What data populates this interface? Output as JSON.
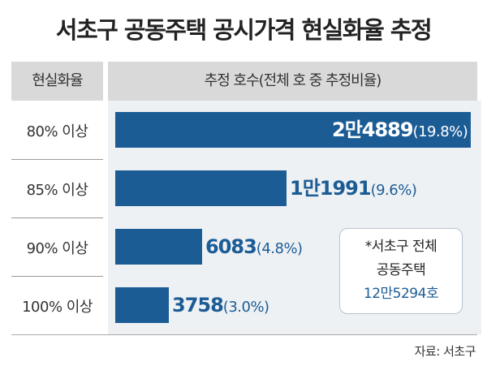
{
  "title": "서초구 공동주택 공시가격 현실화율 추정",
  "header": {
    "left": "현실화율",
    "right": "추정 호수(전체 호 중 추정비율)"
  },
  "chart_data": {
    "type": "bar",
    "orientation": "horizontal",
    "categories": [
      "80% 이상",
      "85% 이상",
      "90% 이상",
      "100% 이상"
    ],
    "values": [
      24889,
      11991,
      6083,
      3758
    ],
    "value_labels": [
      "2만4889",
      "1만1991",
      "6083",
      "3758"
    ],
    "percent_labels": [
      "(19.8%)",
      "(9.6%)",
      "(4.8%)",
      "(3.0%)"
    ],
    "xlim": [
      0,
      24889
    ],
    "grid": false,
    "legend": "none",
    "colors": {
      "bar": "#1c5c95",
      "header_bg": "#d9d9d9",
      "plot_bg": "#eef1f4"
    }
  },
  "note": {
    "line1": "*서초구 전체",
    "line2": "공동주택",
    "line3": "12만5294호"
  },
  "source": "자료: 서초구"
}
